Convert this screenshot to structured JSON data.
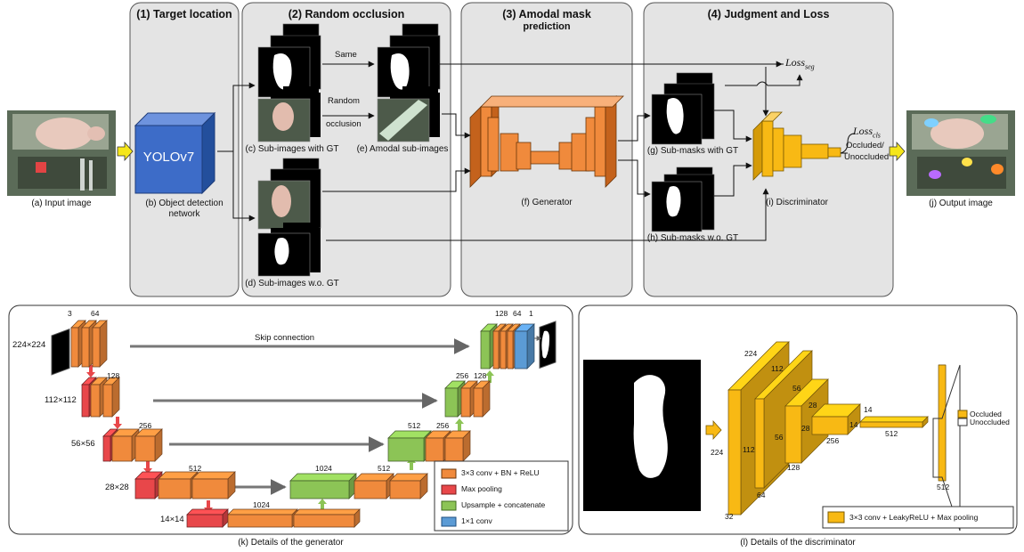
{
  "stages": [
    {
      "title": "(1) Target location",
      "subtitle": ""
    },
    {
      "title": "(2) Random occlusion",
      "subtitle": ""
    },
    {
      "title": "(3) Amodal mask",
      "subtitle": "prediction"
    },
    {
      "title": "(4) Judgment and Loss",
      "subtitle": ""
    }
  ],
  "yolo_label": "YOLOv7",
  "captions": {
    "input": "(a) Input image",
    "detector_1": "(b) Object detection",
    "detector_2": "network",
    "sub_gt": "(c) Sub-images with GT",
    "sub_wo": "(d) Sub-images w.o. GT",
    "amodal": "(e) Amodal sub-images",
    "generator": "(f) Generator",
    "mask_gt": "(g) Sub-masks with GT",
    "mask_wo": "(h) Sub-masks w.o. GT",
    "discriminator": "(i) Discriminator",
    "output": "(j) Output image",
    "gen_detail": "(k) Details of the generator",
    "disc_detail": "(l) Details of the discriminator"
  },
  "arrow_labels": {
    "same": "Same",
    "random_1": "Random",
    "random_2": "occlusion",
    "skip": "Skip connection",
    "occluded": "Occluded/",
    "unoccluded": "Unoccluded"
  },
  "loss": {
    "seg": "Loss",
    "seg_sub": "seg",
    "cls": "Loss",
    "cls_sub": "cls"
  },
  "generator_detail": {
    "sizes": [
      "224×224",
      "112×112",
      "56×56",
      "28×28",
      "14×14"
    ],
    "channels": {
      "in": "3",
      "c64": "64",
      "c128": "128",
      "c256": "256",
      "c512": "512",
      "c1024_a": "1024",
      "c1024_b": "1024",
      "d512": "512",
      "d256": "256",
      "d128": "128",
      "u256": "256",
      "u128": "128",
      "out128": "128",
      "out64": "64",
      "out1": "1"
    },
    "legend": [
      "3×3 conv + BN + ReLU",
      "Max pooling",
      "Upsample + concatenate",
      "1×1 conv"
    ]
  },
  "discriminator_detail": {
    "dims": [
      "224",
      "224",
      "32",
      "112",
      "112",
      "64",
      "56",
      "56",
      "128",
      "28",
      "28",
      "256",
      "14",
      "14",
      "512",
      "512"
    ],
    "outputs": [
      "Occluded",
      "Unoccluded"
    ],
    "legend": "3×3 conv + LeakyReLU + Max pooling"
  },
  "colors": {
    "panel": "#e4e4e4",
    "yolo": "#3d6cc8",
    "conv": "#f08a3c",
    "pool": "#e8474a",
    "upsample": "#8cc456",
    "conv1x1": "#5b9bd5",
    "disc": "#f8b914"
  }
}
